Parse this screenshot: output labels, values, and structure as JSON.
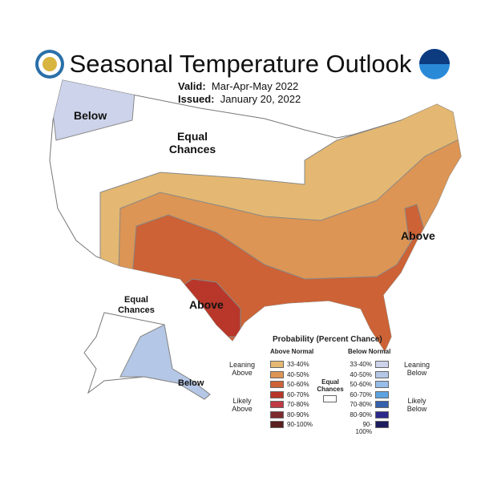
{
  "title": "Seasonal Temperature Outlook",
  "valid": {
    "label": "Valid:",
    "value": "Mar-Apr-May 2022"
  },
  "issued": {
    "label": "Issued:",
    "value": "January 20, 2022"
  },
  "map_labels": {
    "below": "Below",
    "equal_chances": "Equal Chances",
    "above_tx": "Above",
    "above_east": "Above",
    "ak_equal": "Equal Chances",
    "ak_below": "Below"
  },
  "legend": {
    "title": "Probability (Percent Chance)",
    "above_header": "Above Normal",
    "below_header": "Below Normal",
    "leaning_above": "Leaning Above",
    "likely_above": "Likely Above",
    "leaning_below": "Leaning Below",
    "likely_below": "Likely Below",
    "equal_chances": "Equal Chances",
    "above": [
      {
        "range": "33-40%",
        "color": "#e4b872"
      },
      {
        "range": "40-50%",
        "color": "#dc9554"
      },
      {
        "range": "50-60%",
        "color": "#cc6236"
      },
      {
        "range": "60-70%",
        "color": "#b8372a"
      },
      {
        "range": "70-80%",
        "color": "#c03a44"
      },
      {
        "range": "80-90%",
        "color": "#7e2b2e"
      },
      {
        "range": "90-100%",
        "color": "#5a1f1e"
      }
    ],
    "below": [
      {
        "range": "33-40%",
        "color": "#cdd3ea"
      },
      {
        "range": "40-50%",
        "color": "#b4c7e6"
      },
      {
        "range": "50-60%",
        "color": "#97bde8"
      },
      {
        "range": "60-70%",
        "color": "#5ea2e0"
      },
      {
        "range": "70-80%",
        "color": "#3561ad"
      },
      {
        "range": "80-90%",
        "color": "#2b2a8c"
      },
      {
        "range": "90-100%",
        "color": "#1c1c5e"
      }
    ]
  }
}
